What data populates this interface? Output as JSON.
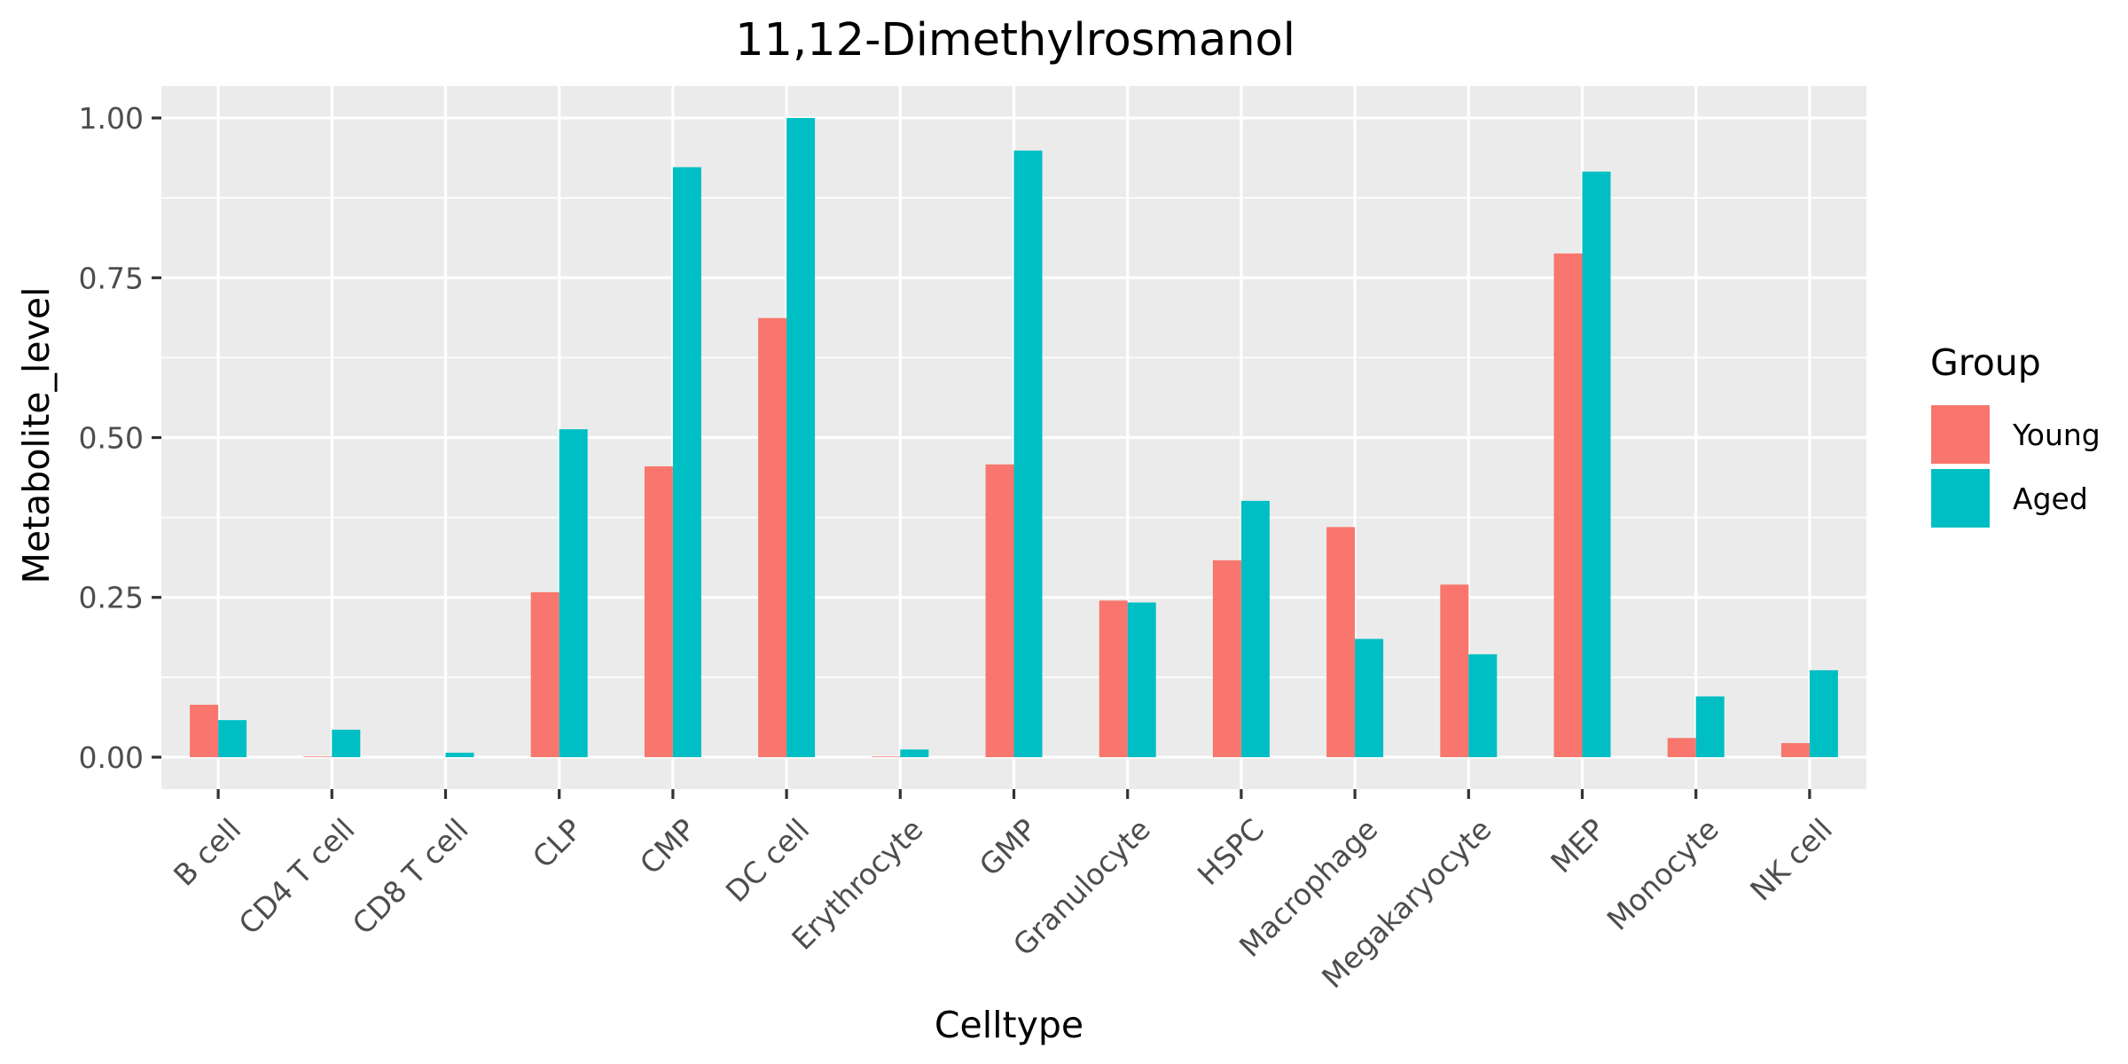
{
  "chart_data": {
    "type": "bar",
    "title": "11,12-Dimethylrosmanol",
    "xlabel": "Celltype",
    "ylabel": "Metabolite_level",
    "ylim": [
      -0.05,
      1.05
    ],
    "yticks": [
      0.0,
      0.25,
      0.5,
      0.75,
      1.0
    ],
    "ytick_labels": [
      "0.00",
      "0.25",
      "0.50",
      "0.75",
      "1.00"
    ],
    "grid": true,
    "legend": {
      "title": "Group",
      "placement": "right"
    },
    "categories": [
      "B cell",
      "CD4 T cell",
      "CD8 T cell",
      "CLP",
      "CMP",
      "DC cell",
      "Erythrocyte",
      "GMP",
      "Granulocyte",
      "HSPC",
      "Macrophage",
      "Megakaryocyte",
      "MEP",
      "Monocyte",
      "NK cell"
    ],
    "series": [
      {
        "name": "Young",
        "color": "#F8766D",
        "values": [
          0.082,
          0.001,
          0.0,
          0.258,
          0.455,
          0.687,
          0.001,
          0.458,
          0.245,
          0.308,
          0.36,
          0.27,
          0.788,
          0.03,
          0.022
        ]
      },
      {
        "name": "Aged",
        "color": "#00BFC4",
        "values": [
          0.058,
          0.043,
          0.007,
          0.513,
          0.923,
          1.0,
          0.012,
          0.949,
          0.242,
          0.401,
          0.185,
          0.161,
          0.916,
          0.095,
          0.136
        ]
      }
    ]
  }
}
